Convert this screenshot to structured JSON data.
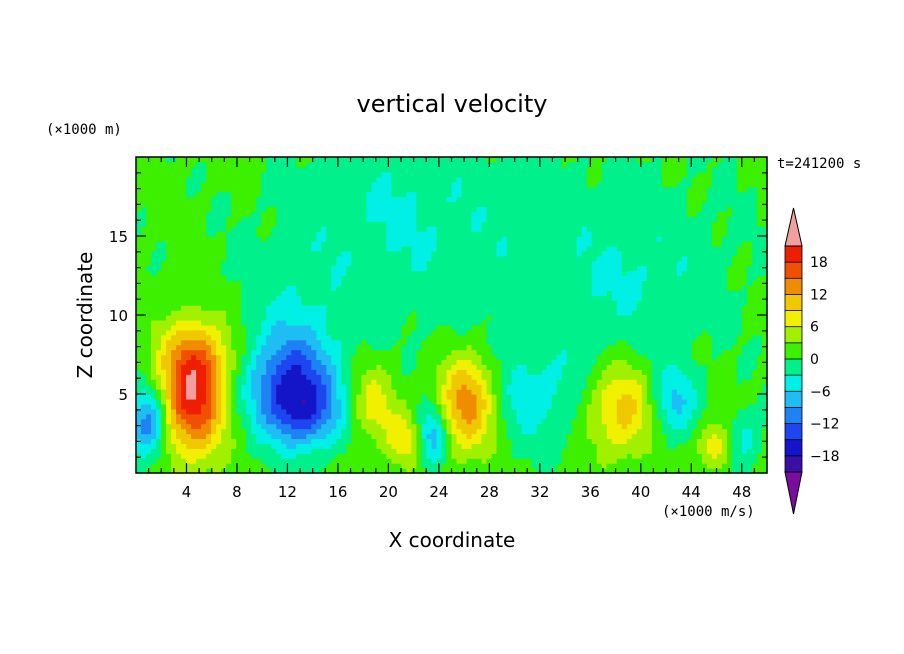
{
  "chart_data": {
    "type": "heatmap",
    "title": "vertical velocity",
    "xlabel": "X coordinate",
    "ylabel": "Z coordinate",
    "x_units": "(×1000 m/s)",
    "y_units": "(×1000 m)",
    "time_label": "t=241200 s",
    "xlim": [
      0,
      50
    ],
    "ylim": [
      0,
      20
    ],
    "x_ticks": [
      "4",
      "8",
      "12",
      "16",
      "20",
      "24",
      "28",
      "32",
      "36",
      "40",
      "44",
      "48"
    ],
    "y_ticks": [
      "5",
      "10",
      "15"
    ],
    "colorbar": {
      "levels": [
        -21,
        -18,
        -15,
        -12,
        -9,
        -6,
        -3,
        0,
        3,
        6,
        9,
        12,
        15,
        18,
        21
      ],
      "tick_labels": [
        "18",
        "12",
        "6",
        "0",
        "−6",
        "−12",
        "−18"
      ],
      "colors": [
        "#7a0c9e",
        "#3b0fa6",
        "#1414c8",
        "#1e46f0",
        "#1e82f5",
        "#1ebef5",
        "#00f0e6",
        "#00f08c",
        "#3cf000",
        "#a0f000",
        "#f0f000",
        "#f0c800",
        "#f08c00",
        "#f05000",
        "#f01e00",
        "#f0a0a0"
      ]
    },
    "features": [
      {
        "x": 1.0,
        "z": 3.2,
        "amp": -13,
        "sx": 1.0,
        "sz": 1.6
      },
      {
        "x": 4.5,
        "z": 4.8,
        "amp": 19,
        "sx": 1.8,
        "sz": 2.6
      },
      {
        "x": 5.0,
        "z": 7.8,
        "amp": 6,
        "sx": 2.2,
        "sz": 1.6
      },
      {
        "x": 12.3,
        "z": 5.6,
        "amp": -14,
        "sx": 2.4,
        "sz": 2.2
      },
      {
        "x": 13.5,
        "z": 3.6,
        "amp": -8,
        "sx": 2.0,
        "sz": 1.5
      },
      {
        "x": 12.5,
        "z": 9.5,
        "amp": -3,
        "sx": 3.0,
        "sz": 3.5
      },
      {
        "x": 18.8,
        "z": 4.5,
        "amp": 7,
        "sx": 1.3,
        "sz": 1.8
      },
      {
        "x": 21.3,
        "z": 2.2,
        "amp": 7,
        "sx": 1.0,
        "sz": 1.2
      },
      {
        "x": 23.5,
        "z": 2.4,
        "amp": -10,
        "sx": 0.8,
        "sz": 1.3
      },
      {
        "x": 26.3,
        "z": 4.5,
        "amp": 14,
        "sx": 1.6,
        "sz": 2.2
      },
      {
        "x": 31.5,
        "z": 4.8,
        "amp": -5,
        "sx": 3.0,
        "sz": 2.2
      },
      {
        "x": 38.5,
        "z": 4.0,
        "amp": 10,
        "sx": 2.0,
        "sz": 2.0
      },
      {
        "x": 42.5,
        "z": 4.5,
        "amp": -8,
        "sx": 1.3,
        "sz": 1.6
      },
      {
        "x": 45.8,
        "z": 1.8,
        "amp": 8,
        "sx": 0.9,
        "sz": 1.0
      },
      {
        "x": 48.3,
        "z": 2.2,
        "amp": -5,
        "sx": 0.9,
        "sz": 1.3
      },
      {
        "x": 30.0,
        "z": 14.0,
        "amp": -2.5,
        "sx": 12.0,
        "sz": 5.0
      },
      {
        "x": 20.0,
        "z": 17.0,
        "amp": -2.5,
        "sx": 5.0,
        "sz": 3.5
      },
      {
        "x": 40.0,
        "z": 12.0,
        "amp": -2.4,
        "sx": 4.0,
        "sz": 3.0
      }
    ]
  }
}
